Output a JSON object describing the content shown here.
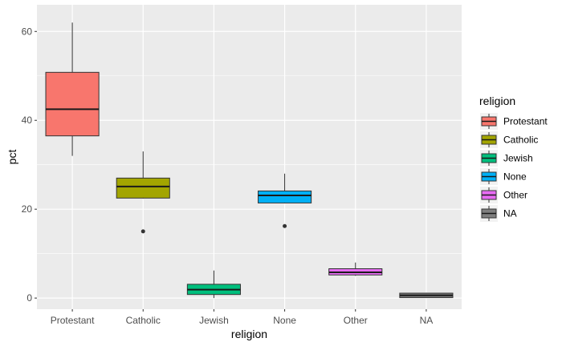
{
  "chart_data": {
    "type": "box",
    "xlabel": "religion",
    "ylabel": "pct",
    "categories": [
      "Protestant",
      "Catholic",
      "Jewish",
      "None",
      "Other",
      "NA"
    ],
    "ylim": [
      -2.5,
      66
    ],
    "yticks": [
      0,
      20,
      40,
      60
    ],
    "grid": true,
    "legend": {
      "title": "religion",
      "position": "right"
    },
    "boxes": [
      {
        "category": "Protestant",
        "color": "#F8766D",
        "lower_whisker": 32,
        "q1": 36.5,
        "median": 42.5,
        "q3": 50.8,
        "upper_whisker": 62,
        "outliers": []
      },
      {
        "category": "Catholic",
        "color": "#A3A500",
        "lower_whisker": 22.4,
        "q1": 22.5,
        "median": 25.1,
        "q3": 27,
        "upper_whisker": 33,
        "outliers": [
          15
        ]
      },
      {
        "category": "Jewish",
        "color": "#00BF7D",
        "lower_whisker": 0,
        "q1": 0.8,
        "median": 1.9,
        "q3": 3.1,
        "upper_whisker": 6.2,
        "outliers": []
      },
      {
        "category": "None",
        "color": "#00B0F6",
        "lower_whisker": 21.3,
        "q1": 21.4,
        "median": 23.1,
        "q3": 24.1,
        "upper_whisker": 28,
        "outliers": [
          16.2
        ]
      },
      {
        "category": "Other",
        "color": "#E76BF3",
        "lower_whisker": 5,
        "q1": 5.2,
        "median": 5.8,
        "q3": 6.6,
        "upper_whisker": 8,
        "outliers": []
      },
      {
        "category": "NA",
        "color": "#7F7F7F",
        "lower_whisker": 0.05,
        "q1": 0.1,
        "median": 0.6,
        "q3": 1.1,
        "upper_whisker": 1.2,
        "outliers": []
      }
    ]
  }
}
